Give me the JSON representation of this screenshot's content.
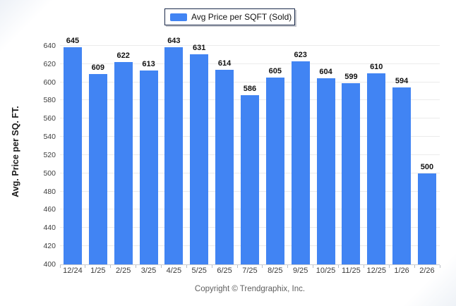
{
  "legend": {
    "label": "Avg Price per SQFT (Sold)"
  },
  "footer": {
    "copyright": "Copyright © Trendgraphix, Inc."
  },
  "chart_data": {
    "type": "bar",
    "title": "",
    "series_name": "Avg Price per SQFT (Sold)",
    "categories": [
      "12/24",
      "1/25",
      "2/25",
      "3/25",
      "4/25",
      "5/25",
      "6/25",
      "7/25",
      "8/25",
      "9/25",
      "10/25",
      "11/25",
      "12/25",
      "1/26",
      "2/26"
    ],
    "values": [
      645,
      609,
      622,
      613,
      643,
      631,
      614,
      586,
      605,
      623,
      604,
      599,
      610,
      594,
      500
    ],
    "xlabel": "",
    "ylabel": "Avg. Price per SQ. FT.",
    "ylim": [
      400,
      650
    ],
    "yticks": [
      400,
      420,
      440,
      460,
      480,
      500,
      520,
      540,
      560,
      580,
      600,
      620,
      640
    ],
    "grid": true,
    "legend_position": "top"
  },
  "colors": {
    "bar": "#4184f3",
    "gridline": "#ebebeb",
    "axis_line": "#c9cdd2",
    "value_label": "#101010",
    "tick_label": "#3c3c3c",
    "footer_text": "#5f5f5f",
    "legend_border": "#1b2a4a"
  }
}
